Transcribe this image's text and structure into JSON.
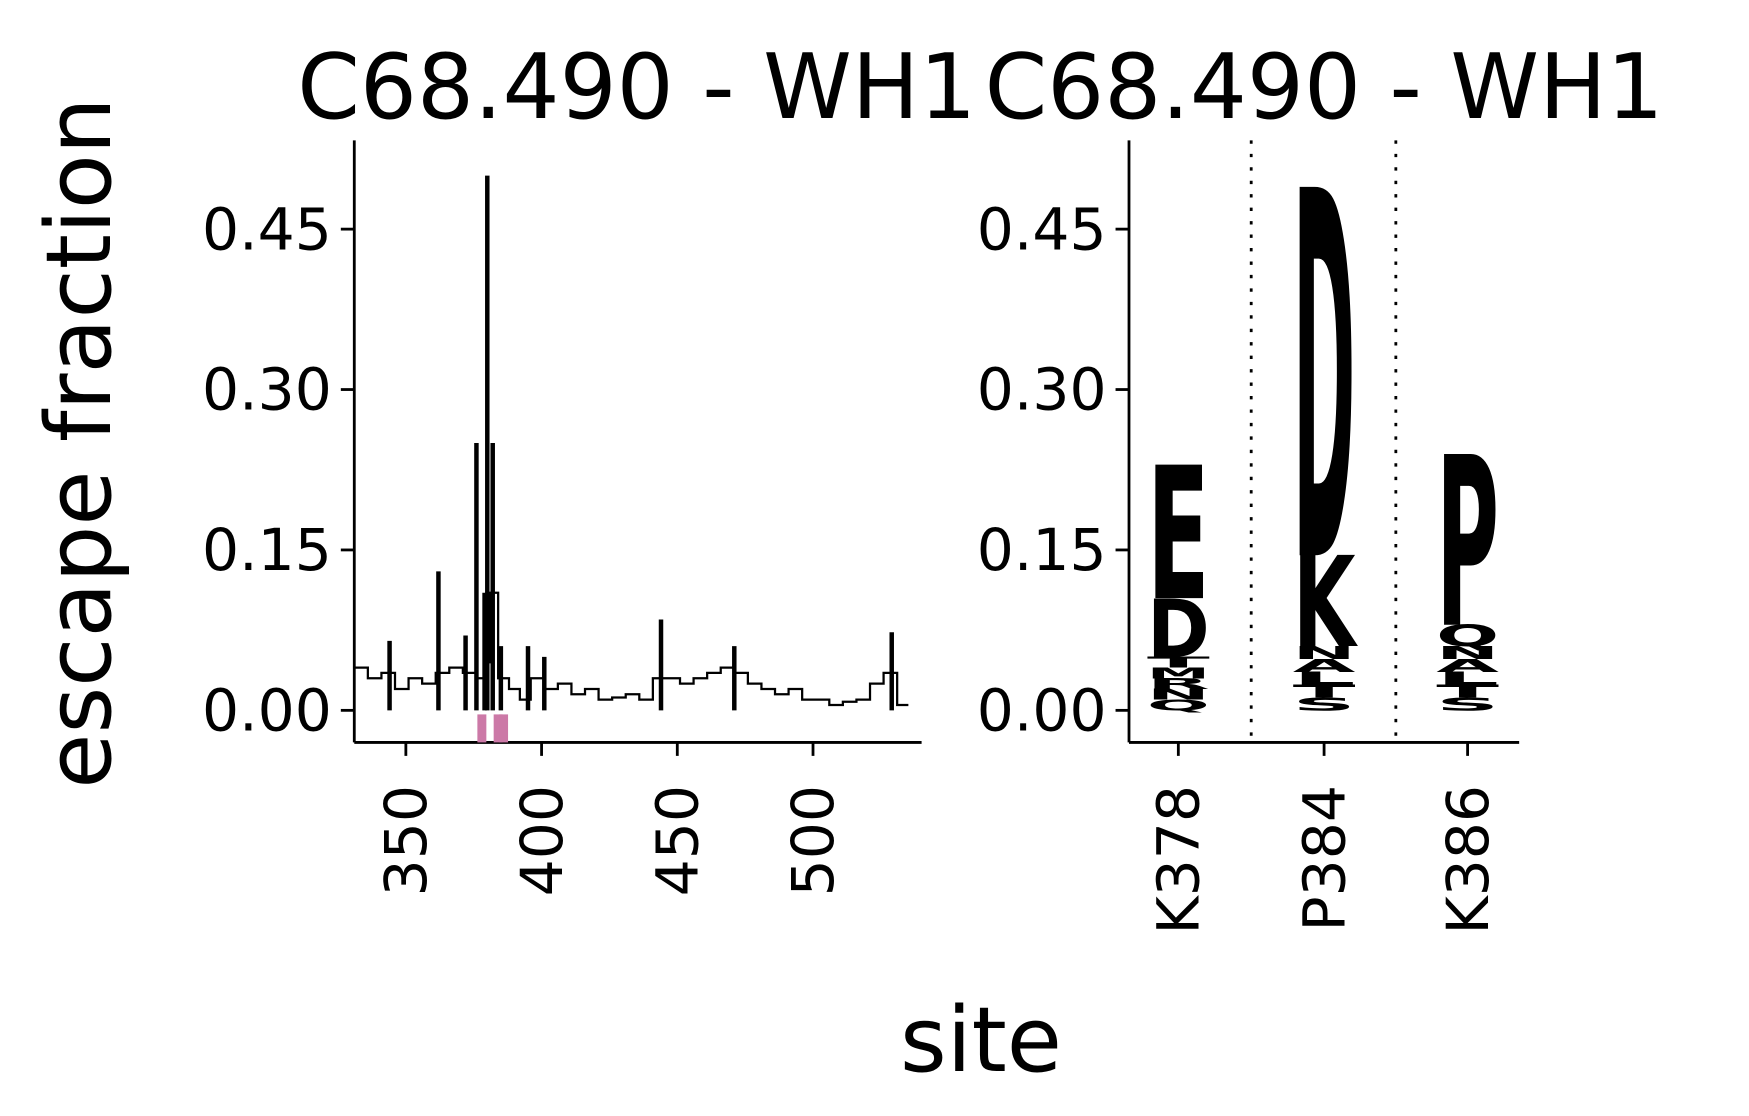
{
  "chart_data": [
    {
      "type": "line",
      "title": "C68.490 - WH1",
      "y_label": "escape fraction",
      "x_label": "site",
      "xlim": [
        331,
        540
      ],
      "ylim": [
        -0.03,
        0.533
      ],
      "xticks": [
        350,
        400,
        450,
        500
      ],
      "yticks": [
        {
          "value": 0,
          "label": "0.00"
        },
        {
          "value": 0.15,
          "label": "0.15"
        },
        {
          "value": 0.3,
          "label": "0.30"
        },
        {
          "value": 0.45,
          "label": "0.45"
        }
      ],
      "series": [
        {
          "name": "mean",
          "color": "#000000",
          "x": [
            331,
            336,
            341,
            346,
            351,
            356,
            361,
            366,
            371,
            376,
            379,
            381,
            384,
            388,
            392,
            396,
            401,
            406,
            411,
            416,
            421,
            426,
            431,
            436,
            441,
            446,
            451,
            456,
            461,
            466,
            471,
            476,
            481,
            486,
            491,
            496,
            501,
            506,
            511,
            516,
            521,
            526,
            531
          ],
          "values": [
            0.04,
            0.03,
            0.035,
            0.02,
            0.03,
            0.025,
            0.035,
            0.04,
            0.035,
            0.03,
            0.045,
            0.11,
            0.03,
            0.02,
            0.01,
            0.03,
            0.02,
            0.025,
            0.015,
            0.02,
            0.01,
            0.012,
            0.015,
            0.01,
            0.03,
            0.03,
            0.025,
            0.03,
            0.035,
            0.04,
            0.035,
            0.025,
            0.02,
            0.015,
            0.02,
            0.01,
            0.01,
            0.005,
            0.008,
            0.01,
            0.025,
            0.035,
            0.005
          ]
        },
        {
          "name": "max",
          "color": "#000000",
          "x": [
            344,
            362,
            372,
            376,
            379,
            380,
            382,
            385,
            395,
            401,
            444,
            471,
            529
          ],
          "values": [
            0.065,
            0.13,
            0.07,
            0.25,
            0.11,
            0.5,
            0.25,
            0.06,
            0.06,
            0.05,
            0.085,
            0.06,
            0.073
          ]
        }
      ],
      "highlight_sites": [
        378,
        384,
        386
      ],
      "highlight_color": "#cc79a7"
    },
    {
      "type": "logo",
      "title": "C68.490 - WH1",
      "categories": [
        "K378",
        "P384",
        "K386"
      ],
      "ylim": [
        -0.03,
        0.533
      ],
      "yticks": [
        {
          "value": 0,
          "label": "0.00"
        },
        {
          "value": 0.15,
          "label": "0.15"
        },
        {
          "value": 0.3,
          "label": "0.30"
        },
        {
          "value": 0.45,
          "label": "0.45"
        }
      ],
      "stacks": [
        [
          {
            "letter": "Q",
            "value": 0.01,
            "color": "#c8733a"
          },
          {
            "letter": "N",
            "value": 0.01,
            "color": "#8a3d10"
          },
          {
            "letter": "R",
            "value": 0.01,
            "color": "#b85a20"
          },
          {
            "letter": "M",
            "value": 0.01,
            "color": "#6b2e0f"
          },
          {
            "letter": "T",
            "value": 0.01,
            "color": "#a04a15"
          },
          {
            "letter": "D",
            "value": 0.055,
            "color": "#983a05"
          },
          {
            "letter": "E",
            "value": 0.125,
            "color": "#7a2c06"
          }
        ],
        [
          {
            "letter": "S",
            "value": 0.012,
            "color": "#c8733a"
          },
          {
            "letter": "T",
            "value": 0.012,
            "color": "#8a3d10"
          },
          {
            "letter": "L",
            "value": 0.012,
            "color": "#b85a20"
          },
          {
            "letter": "A",
            "value": 0.012,
            "color": "#6b2e0f"
          },
          {
            "letter": "N",
            "value": 0.012,
            "color": "#a04a15"
          },
          {
            "letter": "K",
            "value": 0.085,
            "color": "#6b2e0f"
          },
          {
            "letter": "D",
            "value": 0.345,
            "color": "#983a05"
          }
        ],
        [
          {
            "letter": "S",
            "value": 0.012,
            "color": "#c8733a"
          },
          {
            "letter": "T",
            "value": 0.012,
            "color": "#8a3d10"
          },
          {
            "letter": "L",
            "value": 0.012,
            "color": "#b85a20"
          },
          {
            "letter": "A",
            "value": 0.012,
            "color": "#6b2e0f"
          },
          {
            "letter": "N",
            "value": 0.012,
            "color": "#a04a15"
          },
          {
            "letter": "Q",
            "value": 0.02,
            "color": "#5a260a"
          },
          {
            "letter": "P",
            "value": 0.16,
            "color": "#d9580a"
          }
        ]
      ]
    }
  ]
}
